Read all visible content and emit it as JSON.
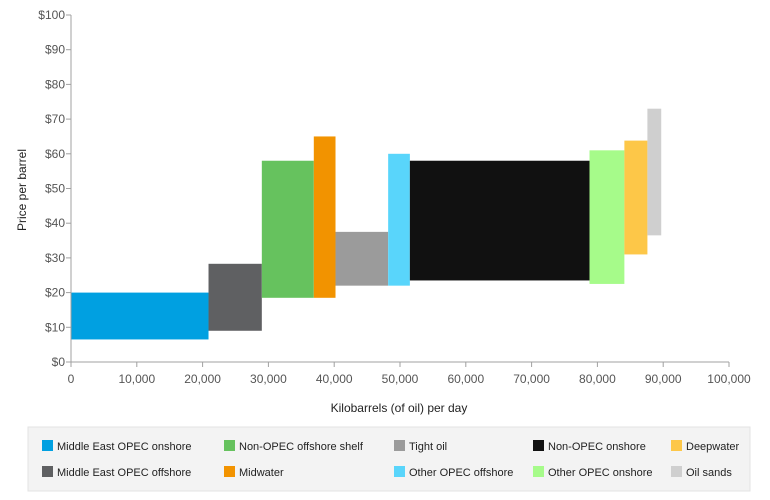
{
  "chart_data": {
    "type": "bar",
    "variant": "variable-width floating bars (cost curve)",
    "xlabel": "Kilobarrels (of oil) per day",
    "ylabel": "Price per barrel",
    "xlim": [
      0,
      100000
    ],
    "ylim": [
      0,
      100
    ],
    "x_ticks": [
      "0",
      "10,000",
      "20,000",
      "30,000",
      "40,000",
      "50,000",
      "60,000",
      "70,000",
      "80,000",
      "90,000",
      "100,000"
    ],
    "y_ticks": [
      "$0",
      "$10",
      "$20",
      "$30",
      "$40",
      "$50",
      "$60",
      "$70",
      "$80",
      "$90",
      "$100"
    ],
    "grid": false,
    "legend_position": "bottom",
    "series": [
      {
        "name": "Middle East OPEC onshore",
        "color": "#00a0e1",
        "x_start": 0,
        "x_end": 20900,
        "low": 6.5,
        "high": 20
      },
      {
        "name": "Middle East OPEC offshore",
        "color": "#5f6062",
        "x_start": 20900,
        "x_end": 29000,
        "low": 9,
        "high": 28.3
      },
      {
        "name": "Non-OPEC offshore shelf",
        "color": "#66c25e",
        "x_start": 29000,
        "x_end": 36900,
        "low": 18.5,
        "high": 58
      },
      {
        "name": "Midwater",
        "color": "#f29300",
        "x_start": 36900,
        "x_end": 40200,
        "low": 18.5,
        "high": 65
      },
      {
        "name": "Tight oil",
        "color": "#9b9b9b",
        "x_start": 40200,
        "x_end": 48200,
        "low": 22,
        "high": 37.5
      },
      {
        "name": "Other OPEC offshore",
        "color": "#59d5fb",
        "x_start": 48200,
        "x_end": 51500,
        "low": 22,
        "high": 60
      },
      {
        "name": "Non-OPEC onshore",
        "color": "#111111",
        "x_start": 51500,
        "x_end": 78800,
        "low": 23.5,
        "high": 58
      },
      {
        "name": "Other OPEC onshore",
        "color": "#a6fb8a",
        "x_start": 78800,
        "x_end": 84100,
        "low": 22.5,
        "high": 61
      },
      {
        "name": "Deepwater",
        "color": "#fdc748",
        "x_start": 84100,
        "x_end": 87600,
        "low": 31,
        "high": 63.8
      },
      {
        "name": "Oil sands",
        "color": "#cfcfcf",
        "x_start": 87600,
        "x_end": 89700,
        "low": 36.5,
        "high": 73
      }
    ]
  }
}
